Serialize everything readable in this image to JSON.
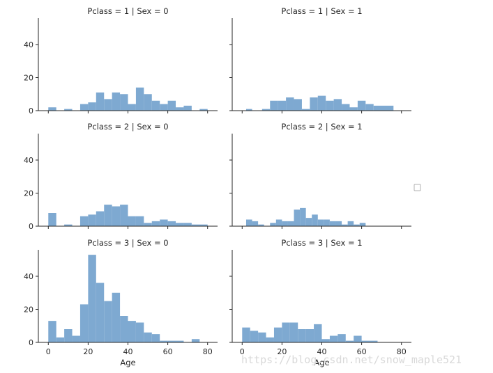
{
  "chart_data": {
    "type": "bar",
    "layout": "facet-grid-3x2",
    "bar_color": "#7ea9d1",
    "xlim": [
      -5,
      85
    ],
    "ylim": [
      0,
      56
    ],
    "xticks": [
      0,
      20,
      40,
      60,
      80
    ],
    "yticks": [
      0,
      20,
      40
    ],
    "xlabel": "Age",
    "panels": [
      {
        "title": "Pclass = 1 | Sex = 0",
        "bins": [
          [
            0,
            4,
            2
          ],
          [
            8,
            12,
            1
          ],
          [
            16,
            20,
            4
          ],
          [
            20,
            24,
            5
          ],
          [
            24,
            28,
            11
          ],
          [
            28,
            32,
            7
          ],
          [
            32,
            36,
            11
          ],
          [
            36,
            40,
            10
          ],
          [
            40,
            44,
            4
          ],
          [
            44,
            48,
            14
          ],
          [
            48,
            52,
            10
          ],
          [
            52,
            56,
            6
          ],
          [
            56,
            60,
            4
          ],
          [
            60,
            64,
            6
          ],
          [
            64,
            68,
            2
          ],
          [
            68,
            72,
            3
          ],
          [
            76,
            80,
            1
          ]
        ]
      },
      {
        "title": "Pclass = 1 | Sex = 1",
        "bins": [
          [
            2,
            5,
            1
          ],
          [
            10,
            14,
            1
          ],
          [
            14,
            18,
            6
          ],
          [
            18,
            22,
            6
          ],
          [
            22,
            26,
            8
          ],
          [
            26,
            30,
            7
          ],
          [
            30,
            34,
            1
          ],
          [
            34,
            38,
            8
          ],
          [
            38,
            42,
            9
          ],
          [
            42,
            46,
            6
          ],
          [
            46,
            50,
            7
          ],
          [
            50,
            54,
            4
          ],
          [
            54,
            58,
            2
          ],
          [
            58,
            62,
            6
          ],
          [
            62,
            66,
            4
          ],
          [
            66,
            76,
            3
          ]
        ]
      },
      {
        "title": "Pclass = 2 | Sex = 0",
        "bins": [
          [
            0,
            4,
            8
          ],
          [
            8,
            12,
            1
          ],
          [
            16,
            20,
            6
          ],
          [
            20,
            24,
            7
          ],
          [
            24,
            28,
            9
          ],
          [
            28,
            32,
            13
          ],
          [
            32,
            36,
            12
          ],
          [
            36,
            40,
            13
          ],
          [
            40,
            44,
            6
          ],
          [
            44,
            48,
            6
          ],
          [
            48,
            52,
            2
          ],
          [
            52,
            56,
            3
          ],
          [
            56,
            60,
            4
          ],
          [
            60,
            64,
            3
          ],
          [
            64,
            68,
            2
          ],
          [
            68,
            72,
            2
          ],
          [
            72,
            80,
            1
          ]
        ]
      },
      {
        "title": "Pclass = 2 | Sex = 1",
        "bins": [
          [
            2,
            5,
            4
          ],
          [
            5,
            8,
            3
          ],
          [
            8,
            11,
            1
          ],
          [
            14,
            17,
            2
          ],
          [
            17,
            20,
            4
          ],
          [
            20,
            23,
            3
          ],
          [
            23,
            26,
            3
          ],
          [
            26,
            29,
            10
          ],
          [
            29,
            32,
            11
          ],
          [
            32,
            35,
            5
          ],
          [
            35,
            38,
            7
          ],
          [
            38,
            41,
            4
          ],
          [
            41,
            44,
            4
          ],
          [
            44,
            47,
            3
          ],
          [
            47,
            50,
            3
          ],
          [
            50,
            53,
            1
          ],
          [
            53,
            56,
            3
          ],
          [
            56,
            59,
            1
          ],
          [
            59,
            62,
            2
          ]
        ]
      },
      {
        "title": "Pclass = 3 | Sex = 0",
        "bins": [
          [
            0,
            4,
            13
          ],
          [
            4,
            8,
            3
          ],
          [
            8,
            12,
            8
          ],
          [
            12,
            16,
            4
          ],
          [
            16,
            20,
            23
          ],
          [
            20,
            24,
            53
          ],
          [
            24,
            28,
            36
          ],
          [
            28,
            32,
            25
          ],
          [
            32,
            36,
            30
          ],
          [
            36,
            40,
            16
          ],
          [
            40,
            44,
            13
          ],
          [
            44,
            48,
            12
          ],
          [
            48,
            52,
            6
          ],
          [
            52,
            56,
            5
          ],
          [
            56,
            60,
            1
          ],
          [
            60,
            64,
            1
          ],
          [
            64,
            68,
            1
          ],
          [
            72,
            76,
            2
          ]
        ]
      },
      {
        "title": "Pclass = 3 | Sex = 1",
        "bins": [
          [
            0,
            4,
            9
          ],
          [
            4,
            8,
            7
          ],
          [
            8,
            12,
            6
          ],
          [
            12,
            16,
            3
          ],
          [
            16,
            20,
            9
          ],
          [
            20,
            24,
            12
          ],
          [
            24,
            28,
            12
          ],
          [
            28,
            32,
            8
          ],
          [
            32,
            36,
            8
          ],
          [
            36,
            40,
            11
          ],
          [
            40,
            44,
            2
          ],
          [
            44,
            48,
            4
          ],
          [
            48,
            52,
            5
          ],
          [
            52,
            56,
            1
          ],
          [
            56,
            60,
            4
          ],
          [
            60,
            64,
            1
          ],
          [
            64,
            68,
            1
          ]
        ]
      }
    ]
  },
  "legend": {
    "icon": "empty-legend-box-icon"
  },
  "watermark": {
    "text": "https://blog.csdn.net/snow_maple521"
  }
}
